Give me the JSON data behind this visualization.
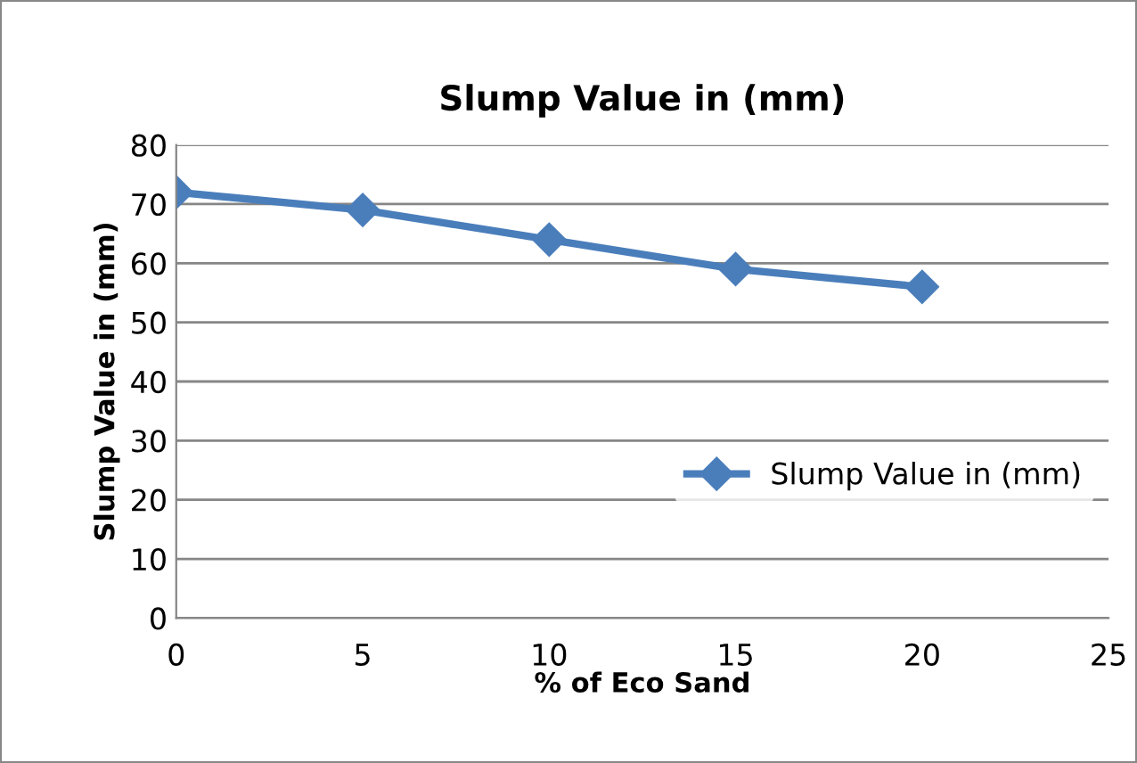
{
  "chart_data": {
    "type": "line",
    "title": "Slump Value in (mm)",
    "xlabel": "% of Eco Sand",
    "ylabel": "Slump Value in (mm)",
    "x": [
      0,
      5,
      10,
      15,
      20
    ],
    "series": [
      {
        "name": "Slump Value in (mm)",
        "color": "#4a7ebb",
        "values": [
          72,
          69,
          64,
          59,
          56
        ]
      }
    ],
    "xlim": [
      0,
      25
    ],
    "xticks": [
      0,
      5,
      10,
      15,
      20,
      25
    ],
    "ylim": [
      0,
      80
    ],
    "yticks": [
      0,
      10,
      20,
      30,
      40,
      50,
      60,
      70,
      80
    ],
    "grid": "y",
    "legend": "right",
    "marker": "diamond",
    "line_style": "solid"
  }
}
